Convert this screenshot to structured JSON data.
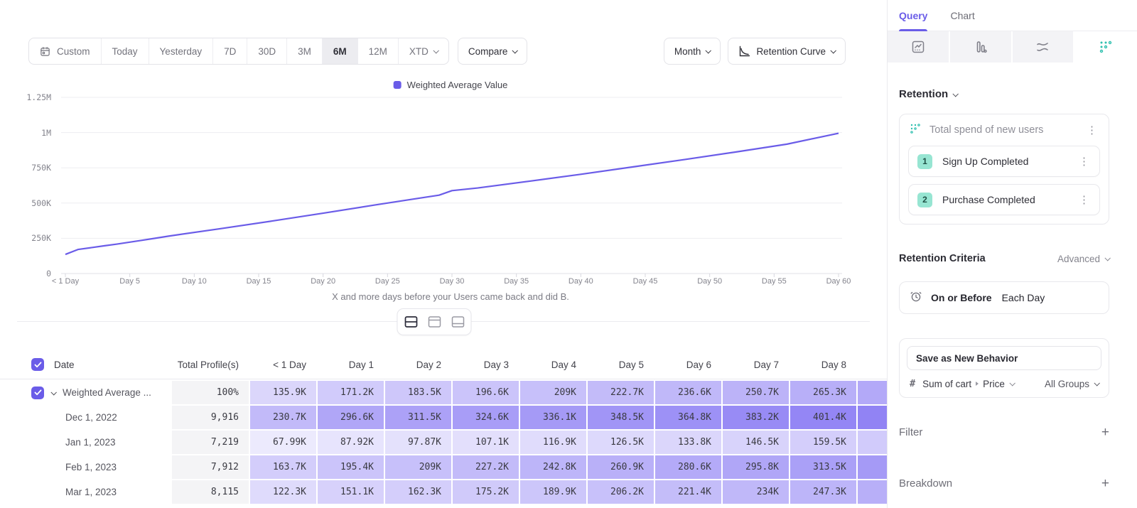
{
  "colors": {
    "accent_purple": "#6a5ce8",
    "heat_rgb": [
      121,
      104,
      242
    ],
    "teal": "#2dbfae",
    "mint_badge": "#97e5d2"
  },
  "toolbar": {
    "ranges": [
      "Custom",
      "Today",
      "Yesterday",
      "7D",
      "30D",
      "3M",
      "6M",
      "12M",
      "XTD"
    ],
    "active_range": "6M",
    "compare_label": "Compare",
    "granularity_label": "Month",
    "chart_type_label": "Retention Curve"
  },
  "chart_data": {
    "type": "line",
    "legend": [
      "Weighted Average Value"
    ],
    "series_color": "#6a5ce8",
    "xlabel_caption": "X and more days before your Users came back and did B.",
    "xlim_days": [
      0,
      60
    ],
    "ylim_k": [
      0,
      1250
    ],
    "grid": true,
    "legend_position": "top-center",
    "y_ticks": [
      {
        "label": "1.25M",
        "value_k": 1250
      },
      {
        "label": "1M",
        "value_k": 1000
      },
      {
        "label": "750K",
        "value_k": 750
      },
      {
        "label": "500K",
        "value_k": 500
      },
      {
        "label": "250K",
        "value_k": 250
      },
      {
        "label": "0",
        "value_k": 0
      }
    ],
    "x_ticks": [
      {
        "label": "< 1 Day",
        "day": 0
      },
      {
        "label": "Day 5",
        "day": 5
      },
      {
        "label": "Day 10",
        "day": 10
      },
      {
        "label": "Day 15",
        "day": 15
      },
      {
        "label": "Day 20",
        "day": 20
      },
      {
        "label": "Day 25",
        "day": 25
      },
      {
        "label": "Day 30",
        "day": 30
      },
      {
        "label": "Day 35",
        "day": 35
      },
      {
        "label": "Day 40",
        "day": 40
      },
      {
        "label": "Day 45",
        "day": 45
      },
      {
        "label": "Day 50",
        "day": 50
      },
      {
        "label": "Day 55",
        "day": 55
      },
      {
        "label": "Day 60",
        "day": 60
      }
    ],
    "series": [
      {
        "name": "Weighted Average Value",
        "points_day_valueK": [
          [
            0,
            135.9
          ],
          [
            1,
            171.2
          ],
          [
            2,
            183.5
          ],
          [
            3,
            196.6
          ],
          [
            4,
            209
          ],
          [
            5,
            222.7
          ],
          [
            6,
            236.6
          ],
          [
            7,
            250.7
          ],
          [
            8,
            265.3
          ],
          [
            12,
            318
          ],
          [
            16,
            372
          ],
          [
            20,
            428
          ],
          [
            24,
            486
          ],
          [
            28,
            542
          ],
          [
            29,
            556
          ],
          [
            30,
            588
          ],
          [
            32,
            607
          ],
          [
            36,
            655
          ],
          [
            40,
            704
          ],
          [
            44,
            756
          ],
          [
            48,
            808
          ],
          [
            52,
            862
          ],
          [
            56,
            918
          ],
          [
            60,
            995
          ]
        ]
      }
    ]
  },
  "view_toggle": {
    "options": [
      "split-view",
      "chart-only-view",
      "table-only-view"
    ],
    "active": "split-view"
  },
  "table": {
    "headers": [
      "Date",
      "Total Profile(s)",
      "< 1 Day",
      "Day 1",
      "Day 2",
      "Day 3",
      "Day 4",
      "Day 5",
      "Day 6",
      "Day 7",
      "Day 8"
    ],
    "rows": [
      {
        "label": "Weighted Average ...",
        "has_checkbox": true,
        "has_chevron": true,
        "total": "100%",
        "values": [
          "135.9K",
          "171.2K",
          "183.5K",
          "196.6K",
          "209K",
          "222.7K",
          "236.6K",
          "250.7K",
          "265.3K"
        ]
      },
      {
        "label": "Dec 1, 2022",
        "total": "9,916",
        "values": [
          "230.7K",
          "296.6K",
          "311.5K",
          "324.6K",
          "336.1K",
          "348.5K",
          "364.8K",
          "383.2K",
          "401.4K"
        ]
      },
      {
        "label": "Jan 1, 2023",
        "total": "7,219",
        "values": [
          "67.99K",
          "87.92K",
          "97.87K",
          "107.1K",
          "116.9K",
          "126.5K",
          "133.8K",
          "146.5K",
          "159.5K"
        ]
      },
      {
        "label": "Feb 1, 2023",
        "total": "7,912",
        "values": [
          "163.7K",
          "195.4K",
          "209K",
          "227.2K",
          "242.8K",
          "260.9K",
          "280.6K",
          "295.8K",
          "313.5K"
        ]
      },
      {
        "label": "Mar 1, 2023",
        "total": "8,115",
        "values": [
          "122.3K",
          "151.1K",
          "162.3K",
          "175.2K",
          "189.9K",
          "206.2K",
          "221.4K",
          "234K",
          "247.3K"
        ]
      }
    ]
  },
  "sidebar": {
    "tabs": [
      {
        "label": "Query",
        "active": true
      },
      {
        "label": "Chart",
        "active": false
      }
    ],
    "report_types": [
      "insights",
      "funnels",
      "flows",
      "retention"
    ],
    "active_report": "retention",
    "section_label": "Retention",
    "behavior": {
      "title": "Total spend of new users",
      "steps": [
        {
          "num": "1",
          "label": "Sign Up Completed"
        },
        {
          "num": "2",
          "label": "Purchase Completed"
        }
      ]
    },
    "criteria": {
      "label": "Retention Criteria",
      "mode": "Advanced",
      "condition_bold": "On or Before",
      "condition_rest": "Each Day"
    },
    "save_button_label": "Save as New Behavior",
    "measure": {
      "symbol": "#",
      "label": "Sum of cart",
      "property": "Price",
      "group": "All Groups"
    },
    "filter_label": "Filter",
    "breakdown_label": "Breakdown"
  }
}
